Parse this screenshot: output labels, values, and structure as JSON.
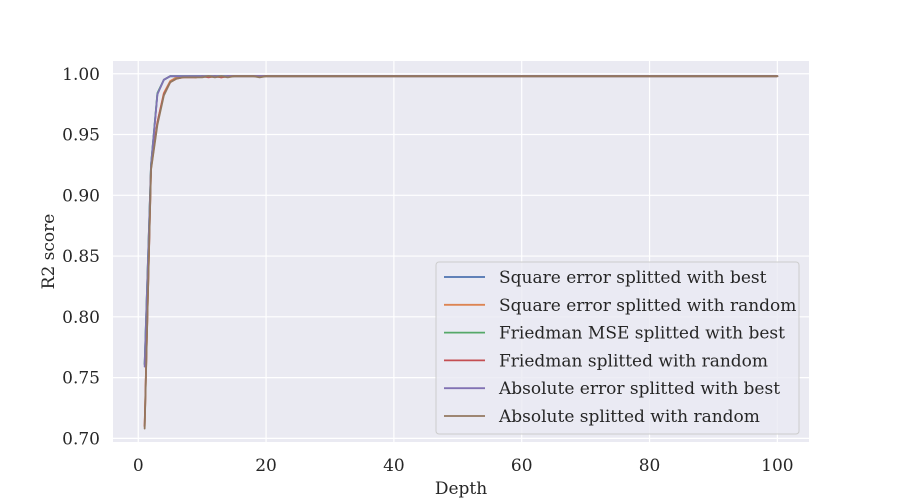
{
  "chart_data": {
    "type": "line",
    "title": "",
    "xlabel": "Depth",
    "ylabel": "R2 score",
    "xlim": [
      -3.95,
      104.95
    ],
    "ylim": [
      0.697,
      1.0105
    ],
    "xticks": [
      0,
      20,
      40,
      60,
      80,
      100
    ],
    "xtick_labels": [
      "0",
      "20",
      "40",
      "60",
      "80",
      "100"
    ],
    "yticks": [
      0.7,
      0.75,
      0.8,
      0.85,
      0.9,
      0.95,
      1.0
    ],
    "ytick_labels": [
      "0.70",
      "0.75",
      "0.80",
      "0.85",
      "0.90",
      "0.95",
      "1.00"
    ],
    "grid": true,
    "legend_position": "lower-right",
    "x": [
      1,
      2,
      3,
      4,
      5,
      6,
      7,
      8,
      9,
      10,
      11,
      12,
      13,
      14,
      15,
      16,
      17,
      18,
      19,
      20,
      30,
      40,
      50,
      60,
      70,
      80,
      90,
      100
    ],
    "series": [
      {
        "name": "Square error splitted with best",
        "color": "#4c72b0",
        "values": [
          0.761,
          0.925,
          0.984,
          0.995,
          0.998,
          0.998,
          0.998,
          0.998,
          0.998,
          0.998,
          0.998,
          0.998,
          0.998,
          0.998,
          0.998,
          0.998,
          0.998,
          0.998,
          0.998,
          0.998,
          0.998,
          0.998,
          0.998,
          0.998,
          0.998,
          0.998,
          0.998,
          0.998
        ]
      },
      {
        "name": "Square error splitted with random",
        "color": "#dd8452",
        "values": [
          0.71,
          0.923,
          0.96,
          0.984,
          0.994,
          0.997,
          0.997,
          0.998,
          0.997,
          0.998,
          0.998,
          0.998,
          0.997,
          0.998,
          0.998,
          0.998,
          0.998,
          0.998,
          0.998,
          0.998,
          0.998,
          0.998,
          0.998,
          0.998,
          0.998,
          0.998,
          0.998,
          0.998
        ]
      },
      {
        "name": "Friedman MSE splitted with best",
        "color": "#55a868",
        "values": [
          0.761,
          0.925,
          0.984,
          0.995,
          0.998,
          0.998,
          0.998,
          0.998,
          0.998,
          0.998,
          0.998,
          0.998,
          0.998,
          0.998,
          0.998,
          0.998,
          0.998,
          0.998,
          0.998,
          0.998,
          0.998,
          0.998,
          0.998,
          0.998,
          0.998,
          0.998,
          0.998,
          0.998
        ]
      },
      {
        "name": "Friedman splitted with random",
        "color": "#c44e52",
        "values": [
          0.71,
          0.922,
          0.96,
          0.983,
          0.993,
          0.996,
          0.997,
          0.997,
          0.997,
          0.998,
          0.997,
          0.998,
          0.997,
          0.998,
          0.998,
          0.998,
          0.998,
          0.998,
          0.998,
          0.998,
          0.998,
          0.998,
          0.998,
          0.998,
          0.998,
          0.998,
          0.998,
          0.998
        ]
      },
      {
        "name": "Absolute error splitted with best",
        "color": "#8172b3",
        "values": [
          0.759,
          0.924,
          0.983,
          0.995,
          0.998,
          0.998,
          0.998,
          0.998,
          0.998,
          0.998,
          0.998,
          0.998,
          0.998,
          0.998,
          0.998,
          0.998,
          0.998,
          0.998,
          0.998,
          0.998,
          0.998,
          0.998,
          0.998,
          0.998,
          0.998,
          0.998,
          0.998,
          0.998
        ]
      },
      {
        "name": "Absolute splitted with random",
        "color": "#937860",
        "values": [
          0.708,
          0.921,
          0.958,
          0.982,
          0.993,
          0.996,
          0.997,
          0.997,
          0.997,
          0.997,
          0.998,
          0.997,
          0.998,
          0.997,
          0.998,
          0.998,
          0.998,
          0.998,
          0.997,
          0.998,
          0.998,
          0.998,
          0.998,
          0.998,
          0.998,
          0.998,
          0.998,
          0.998
        ]
      }
    ]
  }
}
